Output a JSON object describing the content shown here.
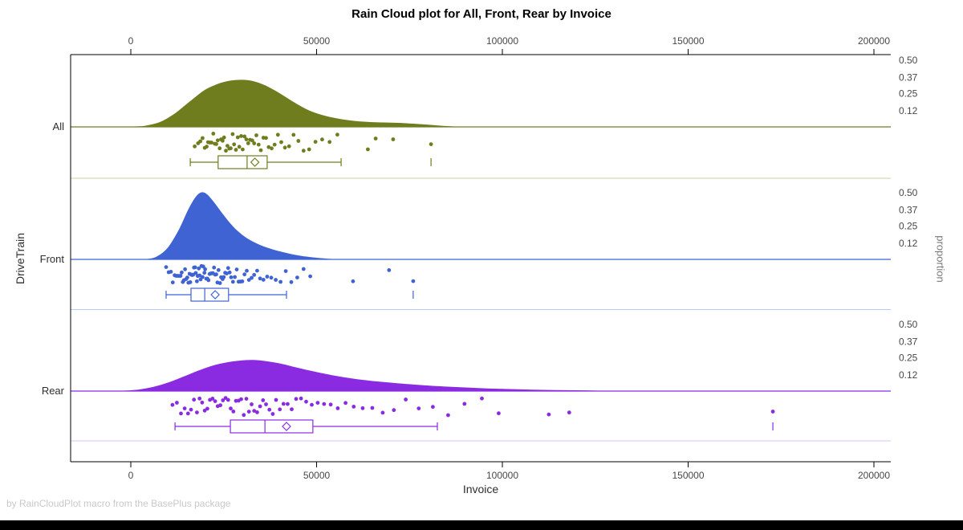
{
  "footer": {
    "credit": "by RainCloudPlot macro from the BasePlus package"
  },
  "chart_data": {
    "type": "raincloud",
    "title": "Rain Cloud plot for All, Front, Rear by Invoice",
    "xlabel": "Invoice",
    "ylabel": "DriveTrain",
    "y2label": "proportion",
    "xlim": [
      -16200,
      204500
    ],
    "x_ticks": [
      0,
      50000,
      100000,
      150000,
      200000
    ],
    "x_tick_labels": [
      "0",
      "50000",
      "100000",
      "150000",
      "200000"
    ],
    "proportion_ticks": [
      0.5,
      0.37,
      0.25,
      0.12
    ],
    "proportion_tick_labels": [
      "0.50",
      "0.37",
      "0.25",
      "0.12"
    ],
    "grid": false,
    "legend": "none",
    "groups": [
      {
        "id": "all",
        "label": "All",
        "color": "#6F7D1E",
        "light_color": "#CCD1A6",
        "density": [
          [
            1000,
            0
          ],
          [
            4000,
            0.006
          ],
          [
            8000,
            0.035
          ],
          [
            12000,
            0.1
          ],
          [
            16000,
            0.19
          ],
          [
            20000,
            0.275
          ],
          [
            24000,
            0.325
          ],
          [
            27000,
            0.345
          ],
          [
            30000,
            0.35
          ],
          [
            33000,
            0.34
          ],
          [
            36000,
            0.31
          ],
          [
            40000,
            0.25
          ],
          [
            44000,
            0.18
          ],
          [
            48000,
            0.12
          ],
          [
            52000,
            0.082
          ],
          [
            56000,
            0.058
          ],
          [
            60000,
            0.042
          ],
          [
            64000,
            0.034
          ],
          [
            68000,
            0.03
          ],
          [
            72000,
            0.027
          ],
          [
            76000,
            0.021
          ],
          [
            80000,
            0.013
          ],
          [
            84000,
            0.005
          ],
          [
            87000,
            0
          ]
        ],
        "points": [
          17200,
          18100,
          18700,
          19300,
          19900,
          20400,
          20800,
          21300,
          21700,
          22200,
          22600,
          23000,
          23400,
          23900,
          24300,
          24700,
          25100,
          25600,
          26000,
          26500,
          26900,
          27400,
          27800,
          28300,
          28800,
          29200,
          29700,
          30100,
          30600,
          31100,
          31600,
          32100,
          32700,
          33200,
          33800,
          34400,
          35000,
          35700,
          36400,
          37100,
          37900,
          38700,
          39600,
          40500,
          41500,
          42600,
          43800,
          45100,
          46500,
          48000,
          49700,
          51500,
          53500,
          55600,
          63800,
          65900,
          70600,
          80800
        ],
        "box": {
          "whisker_low": 16000,
          "q1": 23500,
          "median": 31300,
          "mean": 33400,
          "q3": 36700,
          "whisker_high": 56600,
          "outliers": [
            80800
          ]
        }
      },
      {
        "id": "front",
        "label": "Front",
        "color": "#3F63D2",
        "light_color": "#B9CBEF",
        "density": [
          [
            4500,
            0
          ],
          [
            7000,
            0.018
          ],
          [
            10000,
            0.085
          ],
          [
            13000,
            0.22
          ],
          [
            15500,
            0.37
          ],
          [
            17500,
            0.465
          ],
          [
            19000,
            0.5
          ],
          [
            20500,
            0.485
          ],
          [
            22500,
            0.42
          ],
          [
            24500,
            0.345
          ],
          [
            26500,
            0.275
          ],
          [
            28500,
            0.215
          ],
          [
            31000,
            0.16
          ],
          [
            34000,
            0.115
          ],
          [
            37000,
            0.082
          ],
          [
            40000,
            0.058
          ],
          [
            43000,
            0.038
          ],
          [
            46000,
            0.023
          ],
          [
            49000,
            0.012
          ],
          [
            52000,
            0.004
          ],
          [
            54000,
            0
          ]
        ],
        "points": [
          9500,
          10200,
          10800,
          11300,
          11800,
          12200,
          12600,
          13000,
          13400,
          13700,
          14000,
          14300,
          14600,
          14900,
          15200,
          15500,
          15800,
          16000,
          16300,
          16500,
          16800,
          17000,
          17300,
          17500,
          17800,
          18000,
          18300,
          18500,
          18800,
          19000,
          19300,
          19500,
          19800,
          20000,
          20300,
          20600,
          20900,
          21200,
          21500,
          21800,
          22100,
          22400,
          22700,
          23000,
          23300,
          23600,
          24000,
          24300,
          24700,
          25000,
          25400,
          25800,
          26200,
          26600,
          27000,
          27500,
          28000,
          28500,
          29000,
          29500,
          30000,
          30600,
          31200,
          31800,
          32500,
          33200,
          34000,
          34800,
          35700,
          36700,
          37800,
          39000,
          40300,
          41700,
          43200,
          44800,
          46500,
          48300,
          59800,
          69500,
          76000
        ],
        "box": {
          "whisker_low": 9500,
          "q1": 16200,
          "median": 19900,
          "mean": 22700,
          "q3": 26300,
          "whisker_high": 41900,
          "outliers": [
            76000
          ]
        }
      },
      {
        "id": "rear",
        "label": "Rear",
        "color": "#8A2BE2",
        "light_color": "#DCC2F5",
        "density": [
          [
            -2000,
            0
          ],
          [
            2000,
            0.008
          ],
          [
            6000,
            0.028
          ],
          [
            10000,
            0.06
          ],
          [
            14000,
            0.103
          ],
          [
            18000,
            0.148
          ],
          [
            22000,
            0.188
          ],
          [
            26000,
            0.213
          ],
          [
            30000,
            0.227
          ],
          [
            33000,
            0.23
          ],
          [
            36000,
            0.223
          ],
          [
            40000,
            0.205
          ],
          [
            44000,
            0.178
          ],
          [
            48000,
            0.152
          ],
          [
            54000,
            0.117
          ],
          [
            60000,
            0.09
          ],
          [
            66000,
            0.07
          ],
          [
            72000,
            0.055
          ],
          [
            78000,
            0.042
          ],
          [
            84000,
            0.032
          ],
          [
            90000,
            0.024
          ],
          [
            96000,
            0.017
          ],
          [
            102000,
            0.012
          ],
          [
            108000,
            0.008
          ],
          [
            114000,
            0.005
          ],
          [
            120000,
            0.003
          ],
          [
            126000,
            0
          ]
        ],
        "points": [
          11200,
          12400,
          13500,
          14500,
          15400,
          16200,
          17000,
          17800,
          18500,
          19200,
          19900,
          20600,
          21300,
          22000,
          22700,
          23400,
          24100,
          24800,
          25500,
          26200,
          26900,
          27600,
          28300,
          29000,
          29700,
          30400,
          31100,
          31800,
          32500,
          33200,
          34000,
          34800,
          35600,
          36400,
          37300,
          38200,
          39100,
          40100,
          41100,
          42200,
          43300,
          44500,
          45800,
          47200,
          48700,
          50300,
          52000,
          53800,
          55700,
          57800,
          60000,
          62400,
          65000,
          67800,
          70800,
          74000,
          77500,
          81300,
          85400,
          89800,
          94500,
          99000,
          112500,
          118000,
          172800
        ],
        "box": {
          "whisker_low": 11900,
          "q1": 26800,
          "median": 36100,
          "mean": 41900,
          "q3": 49000,
          "whisker_high": 82500,
          "outliers": [
            172800
          ]
        }
      }
    ]
  }
}
